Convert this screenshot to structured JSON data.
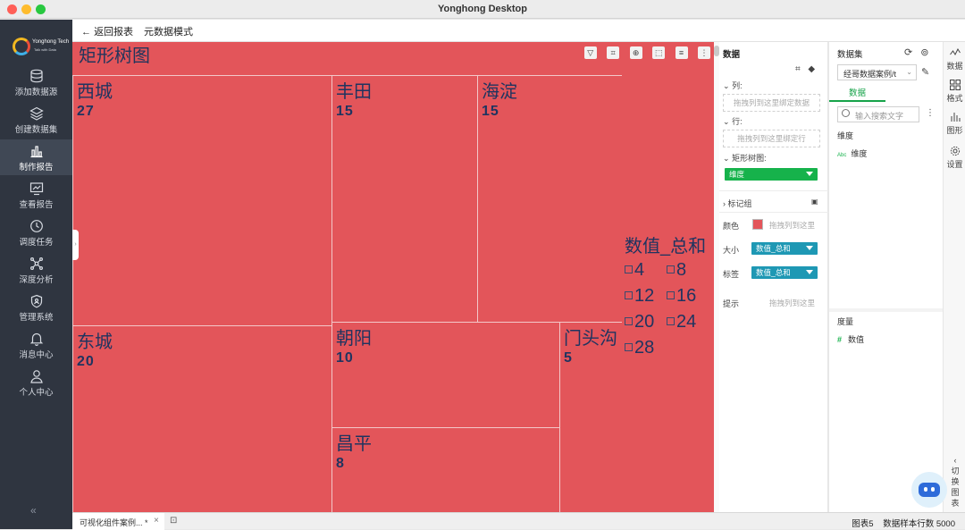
{
  "window": {
    "title": "Yonghong Desktop"
  },
  "logo": {
    "name": "Yonghong Tech",
    "tagline": "Talk with Data"
  },
  "sidebar": {
    "items": [
      {
        "label": "添加数据源",
        "icon": "database-icon"
      },
      {
        "label": "创建数据集",
        "icon": "layers-icon"
      },
      {
        "label": "制作报告",
        "icon": "bar-chart-icon",
        "active": true
      },
      {
        "label": "查看报告",
        "icon": "monitor-chart-icon"
      },
      {
        "label": "调度任务",
        "icon": "clock-icon"
      },
      {
        "label": "深度分析",
        "icon": "network-icon"
      },
      {
        "label": "管理系统",
        "icon": "shield-icon"
      },
      {
        "label": "消息中心",
        "icon": "bell-icon"
      },
      {
        "label": "个人中心",
        "icon": "user-icon"
      }
    ],
    "collapse_label": "«"
  },
  "topbar": {
    "back_label": "返回报表",
    "meta_mode_label": "元数据模式"
  },
  "chart_data": {
    "type": "treemap",
    "title": "矩形树图",
    "size_field": "数值_总和",
    "items": [
      {
        "name": "西城",
        "value": 27
      },
      {
        "name": "丰田",
        "value": 15
      },
      {
        "name": "海淀",
        "value": 15
      },
      {
        "name": "东城",
        "value": 20
      },
      {
        "name": "朝阳",
        "value": 10
      },
      {
        "name": "门头沟",
        "value": 5
      },
      {
        "name": "昌平",
        "value": 8
      }
    ],
    "legend": {
      "title": "数值_总和",
      "values": [
        4,
        8,
        12,
        16,
        20,
        24,
        28
      ]
    },
    "color": "#e3555a",
    "text_color": "#1f3460"
  },
  "bind_panel": {
    "title": "数据",
    "columns_label": "列:",
    "columns_placeholder": "拖拽列到这里绑定数据",
    "rows_label": "行:",
    "rows_placeholder": "拖拽列到这里绑定行",
    "treemap_label": "矩形树图:",
    "treemap_chip": "维度",
    "marks_group_label": "标记组",
    "color_label": "颜色",
    "color_hint": "拖拽列到这里",
    "size_label": "大小",
    "size_chip": "数值_总和",
    "label_label": "标签",
    "label_chip": "数值_总和",
    "tooltip_label": "提示",
    "tooltip_hint": "拖拽列到这里"
  },
  "data_panel": {
    "title": "数据集",
    "dataset_value": "经哥数据案例/t",
    "tab_label": "数据",
    "search_placeholder": "输入搜索文字",
    "dimensions_label": "维度",
    "dimension_field": "维度",
    "dimension_type": "Abc",
    "measures_label": "度量",
    "measure_field": "数值",
    "measure_type": "#"
  },
  "right_rail": {
    "items": [
      {
        "label": "数据",
        "icon": "line-chart-icon"
      },
      {
        "label": "格式",
        "icon": "grid-icon"
      },
      {
        "label": "图形",
        "icon": "bars-icon"
      },
      {
        "label": "设置",
        "icon": "gear-icon"
      }
    ],
    "switch_label": "切换图表"
  },
  "statusbar": {
    "tab_label": "可视化组件案例... *",
    "tab_close": "×",
    "chart_label": "图表5",
    "sample_rows": "数据样本行数 5000"
  }
}
